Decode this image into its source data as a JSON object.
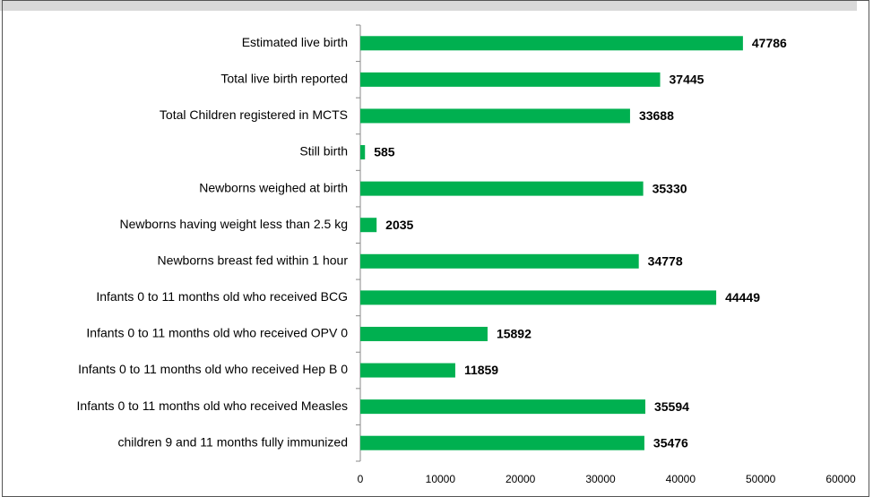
{
  "chart_data": {
    "type": "bar",
    "orientation": "horizontal",
    "categories": [
      "Estimated live birth",
      "Total live birth reported",
      "Total Children registered in MCTS",
      "Still birth",
      "Newborns weighed at birth",
      "Newborns having weight less than 2.5 kg",
      "Newborns breast fed within 1 hour",
      "Infants 0 to 11 months old who received BCG",
      "Infants 0 to 11 months old who received OPV 0",
      "Infants 0 to 11 months old who received Hep B 0",
      "Infants 0 to 11 months old who received Measles",
      "children 9 and 11 months fully immunized"
    ],
    "values": [
      47786,
      37445,
      33688,
      585,
      35330,
      2035,
      34778,
      44449,
      15892,
      11859,
      35594,
      35476
    ],
    "color": "#00b050",
    "xlim": [
      0,
      60000
    ],
    "xticks": [
      0,
      10000,
      20000,
      30000,
      40000,
      50000,
      60000
    ],
    "grid": false
  }
}
